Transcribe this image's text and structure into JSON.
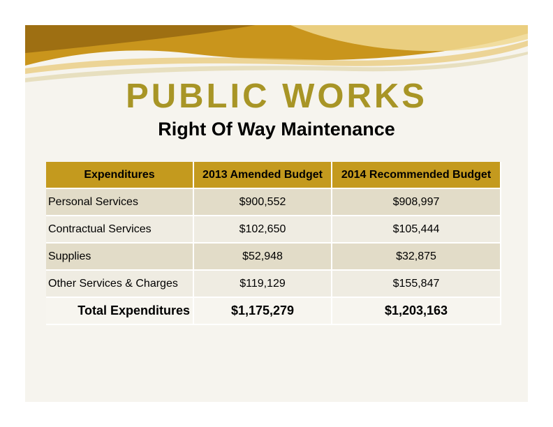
{
  "title": "PUBLIC WORKS",
  "subtitle": "Right Of Way Maintenance",
  "table": {
    "headers": [
      "Expenditures",
      "2013 Amended Budget",
      "2014 Recommended Budget"
    ],
    "rows": [
      {
        "label": "Personal Services",
        "b2013": "$900,552",
        "b2014": "$908,997"
      },
      {
        "label": "Contractual Services",
        "b2013": "$102,650",
        "b2014": "$105,444"
      },
      {
        "label": "Supplies",
        "b2013": "$52,948",
        "b2014": "$32,875"
      },
      {
        "label": "Other Services & Charges",
        "b2013": "$119,129",
        "b2014": "$155,847"
      }
    ],
    "total": {
      "label": "Total Expenditures",
      "b2013": "$1,175,279",
      "b2014": "$1,203,163"
    }
  },
  "colors": {
    "title": "#a89526",
    "header_bg": "#c49a1e",
    "banner_gold": "#c9951c",
    "banner_light": "#f0d890"
  }
}
